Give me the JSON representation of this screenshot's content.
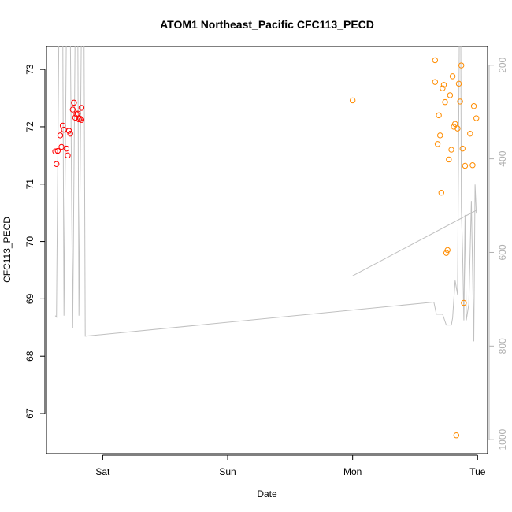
{
  "chart_data": {
    "type": "scatter",
    "title": "ATOM1 Northeast_Pacific CFC113_PECD",
    "xlabel": "Date",
    "ylabel": "CFC113_PECD",
    "x_ticks": [
      {
        "label": "Sat",
        "value": 1
      },
      {
        "label": "Sun",
        "value": 2
      },
      {
        "label": "Mon",
        "value": 3
      },
      {
        "label": "Tue",
        "value": 4
      }
    ],
    "y_ticks": [
      67,
      68,
      69,
      70,
      71,
      72,
      73
    ],
    "xlim": [
      0.55,
      4.08
    ],
    "ylim": [
      66.3,
      73.4
    ],
    "right_axis": {
      "ticks": [
        200,
        400,
        600,
        800,
        1000
      ],
      "lim": [
        160,
        1030
      ],
      "reversed": true,
      "color": "#b0b0b0"
    },
    "grid": false,
    "legend": "none",
    "colors": {
      "red_series": "#ff0000",
      "orange_series": "#ff8c00",
      "line": "#c0c0c0"
    },
    "series": [
      {
        "marker": "circle-open",
        "color": "#ff0000",
        "points": [
          {
            "x": 0.62,
            "y": 71.57
          },
          {
            "x": 0.64,
            "y": 71.58
          },
          {
            "x": 0.63,
            "y": 71.35
          },
          {
            "x": 0.66,
            "y": 71.85
          },
          {
            "x": 0.67,
            "y": 71.65
          },
          {
            "x": 0.68,
            "y": 72.02
          },
          {
            "x": 0.69,
            "y": 71.95
          },
          {
            "x": 0.71,
            "y": 71.62
          },
          {
            "x": 0.72,
            "y": 71.5
          },
          {
            "x": 0.73,
            "y": 71.93
          },
          {
            "x": 0.74,
            "y": 71.88
          },
          {
            "x": 0.76,
            "y": 72.3
          },
          {
            "x": 0.77,
            "y": 72.42
          },
          {
            "x": 0.78,
            "y": 72.16
          },
          {
            "x": 0.79,
            "y": 72.22
          },
          {
            "x": 0.8,
            "y": 72.23
          },
          {
            "x": 0.81,
            "y": 72.13
          },
          {
            "x": 0.82,
            "y": 72.14
          },
          {
            "x": 0.83,
            "y": 72.33
          },
          {
            "x": 0.83,
            "y": 72.12
          }
        ]
      },
      {
        "marker": "circle-open",
        "color": "#ff8c00",
        "points": [
          {
            "x": 3.0,
            "y": 72.46
          },
          {
            "x": 3.66,
            "y": 73.16
          },
          {
            "x": 3.66,
            "y": 72.78
          },
          {
            "x": 3.68,
            "y": 71.7
          },
          {
            "x": 3.69,
            "y": 72.2
          },
          {
            "x": 3.7,
            "y": 71.85
          },
          {
            "x": 3.71,
            "y": 70.85
          },
          {
            "x": 3.72,
            "y": 72.67
          },
          {
            "x": 3.73,
            "y": 72.73
          },
          {
            "x": 3.74,
            "y": 72.43
          },
          {
            "x": 3.75,
            "y": 69.8
          },
          {
            "x": 3.76,
            "y": 69.85
          },
          {
            "x": 3.77,
            "y": 71.43
          },
          {
            "x": 3.78,
            "y": 72.55
          },
          {
            "x": 3.79,
            "y": 71.6
          },
          {
            "x": 3.8,
            "y": 72.88
          },
          {
            "x": 3.81,
            "y": 72.0
          },
          {
            "x": 3.82,
            "y": 72.05
          },
          {
            "x": 3.83,
            "y": 66.62
          },
          {
            "x": 3.84,
            "y": 71.97
          },
          {
            "x": 3.85,
            "y": 72.75
          },
          {
            "x": 3.86,
            "y": 72.44
          },
          {
            "x": 3.87,
            "y": 73.07
          },
          {
            "x": 3.88,
            "y": 71.62
          },
          {
            "x": 3.89,
            "y": 68.93
          },
          {
            "x": 3.9,
            "y": 71.32
          },
          {
            "x": 3.94,
            "y": 71.88
          },
          {
            "x": 3.96,
            "y": 71.33
          },
          {
            "x": 3.97,
            "y": 72.36
          },
          {
            "x": 3.99,
            "y": 72.15
          }
        ]
      }
    ],
    "depth_line": {
      "color": "#c0c0c0",
      "axis": "right",
      "points": [
        {
          "x": 0.62,
          "y": 735
        },
        {
          "x": 0.63,
          "y": 738
        },
        {
          "x": 0.65,
          "y": 100
        },
        {
          "x": 0.68,
          "y": 100
        },
        {
          "x": 0.69,
          "y": 735
        },
        {
          "x": 0.71,
          "y": 100
        },
        {
          "x": 0.74,
          "y": 100
        },
        {
          "x": 0.76,
          "y": 762
        },
        {
          "x": 0.78,
          "y": 100
        },
        {
          "x": 0.8,
          "y": 100
        },
        {
          "x": 0.81,
          "y": 735
        },
        {
          "x": 0.83,
          "y": 100
        },
        {
          "x": 0.85,
          "y": 100
        },
        {
          "x": 0.86,
          "y": 779
        },
        {
          "x": 3.65,
          "y": 706
        },
        {
          "x": 3.67,
          "y": 732
        },
        {
          "x": 3.72,
          "y": 732
        },
        {
          "x": 3.75,
          "y": 755
        },
        {
          "x": 3.79,
          "y": 755
        },
        {
          "x": 3.8,
          "y": 740
        },
        {
          "x": 3.82,
          "y": 660
        },
        {
          "x": 3.84,
          "y": 690
        },
        {
          "x": 3.855,
          "y": 100
        },
        {
          "x": 3.865,
          "y": 100
        },
        {
          "x": 3.87,
          "y": 505
        },
        {
          "x": 3.88,
          "y": 600
        },
        {
          "x": 3.89,
          "y": 745
        },
        {
          "x": 3.9,
          "y": 520
        },
        {
          "x": 3.91,
          "y": 745
        },
        {
          "x": 3.93,
          "y": 710
        },
        {
          "x": 3.95,
          "y": 490
        },
        {
          "x": 3.97,
          "y": 790
        },
        {
          "x": 3.98,
          "y": 455
        },
        {
          "x": 3.99,
          "y": 517
        }
      ]
    },
    "trend_line": {
      "color": "#c0c0c0",
      "axis": "right",
      "points": [
        {
          "x": 3.0,
          "y": 650
        },
        {
          "x": 3.99,
          "y": 510
        }
      ]
    }
  }
}
